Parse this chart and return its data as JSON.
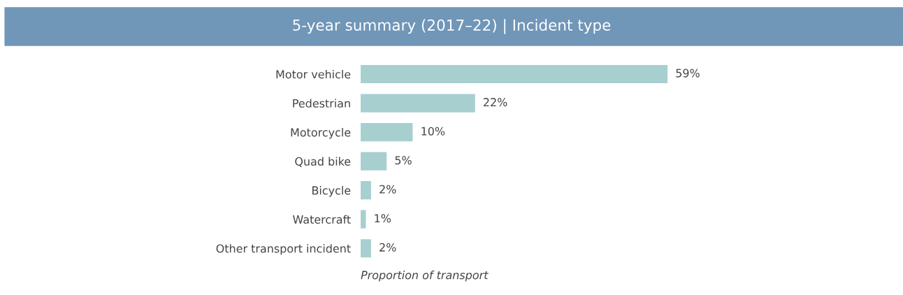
{
  "chart_data": {
    "type": "bar",
    "orientation": "horizontal",
    "title": "5-year summary (2017–22) | Incident type",
    "categories": [
      "Motor vehicle",
      "Pedestrian",
      "Motorcycle",
      "Quad bike",
      "Bicycle",
      "Watercraft",
      "Other transport incident"
    ],
    "values": [
      59,
      22,
      10,
      5,
      2,
      1,
      2
    ],
    "value_labels": [
      "59%",
      "22%",
      "10%",
      "5%",
      "2%",
      "1%",
      "2%"
    ],
    "color": "#a8cfcf",
    "xlabel": "Proportion of transport",
    "grid": false,
    "legend": false
  }
}
